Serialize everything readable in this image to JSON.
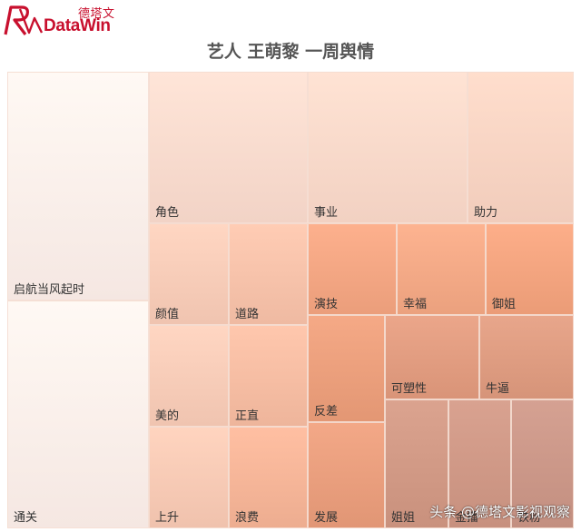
{
  "logo": {
    "brand_cn": "德塔文",
    "brand_en": "DataWin",
    "color": "#c8102e"
  },
  "watermark": "头条 @德塔文影视观察",
  "chart_data": {
    "type": "treemap",
    "title": "艺人 王萌黎 一周舆情",
    "items": [
      {
        "name": "启航当风起时",
        "color_weight": 0.02
      },
      {
        "name": "通关",
        "color_weight": 0.02
      },
      {
        "name": "角色",
        "color_weight": 0.18
      },
      {
        "name": "事业",
        "color_weight": 0.2
      },
      {
        "name": "助力",
        "color_weight": 0.24
      },
      {
        "name": "颜值",
        "color_weight": 0.3
      },
      {
        "name": "道路",
        "color_weight": 0.38
      },
      {
        "name": "美的",
        "color_weight": 0.3
      },
      {
        "name": "正直",
        "color_weight": 0.42
      },
      {
        "name": "上升",
        "color_weight": 0.32
      },
      {
        "name": "浪费",
        "color_weight": 0.48
      },
      {
        "name": "演技",
        "color_weight": 0.6
      },
      {
        "name": "幸福",
        "color_weight": 0.58
      },
      {
        "name": "御姐",
        "color_weight": 0.62
      },
      {
        "name": "反差",
        "color_weight": 0.7
      },
      {
        "name": "发展",
        "color_weight": 0.72
      },
      {
        "name": "可塑性",
        "color_weight": 0.78
      },
      {
        "name": "牛逼",
        "color_weight": 0.8
      },
      {
        "name": "姐姐",
        "color_weight": 0.9
      },
      {
        "name": "金播",
        "color_weight": 0.92
      },
      {
        "name": "铁粉",
        "color_weight": 0.95
      }
    ]
  }
}
